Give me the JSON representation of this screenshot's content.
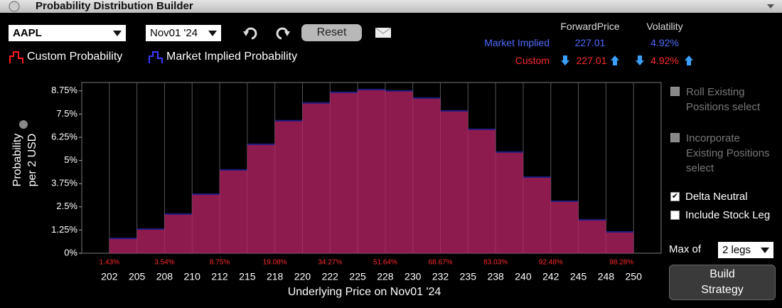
{
  "window": {
    "title": "Probability Distribution Builder"
  },
  "toolbar": {
    "symbol": "AAPL",
    "expiry": "Nov01 '24",
    "reset": "Reset"
  },
  "pricing": {
    "headers": [
      "ForwardPrice",
      "Volatility"
    ],
    "rows": [
      {
        "label": "Market Implied",
        "forward": 227.01,
        "volatility": "4.92%"
      },
      {
        "label": "Custom",
        "forward": 227.01,
        "volatility": "4.92%"
      }
    ]
  },
  "options": {
    "roll": "Roll Existing Positions select",
    "incorporate": "Incorporate Existing Positions select",
    "delta": "Delta Neutral",
    "delta_checked": true,
    "stock": "Include Stock Leg",
    "stock_checked": false,
    "max_label": "Max of",
    "max_value": "2 legs",
    "build": "Build Strategy"
  },
  "chart_data": {
    "type": "histogram",
    "ylabel": [
      "Probability",
      "per 2 USD"
    ],
    "xlabel": "Underlying Price on Nov01 '24",
    "bins": [
      202.5,
      205,
      207.5,
      210,
      212.5,
      215,
      217.5,
      220,
      222.5,
      225,
      227.5,
      230,
      232.5,
      235,
      237.5,
      240,
      242.5,
      245,
      247.5,
      250
    ],
    "series": [
      {
        "name": "Custom Probability",
        "color": "#ff1a1a",
        "values": [
          0.84,
          1.34,
          2.15,
          3.22,
          4.53,
          5.91,
          7.18,
          8.14,
          8.71,
          8.86,
          8.79,
          8.4,
          7.71,
          6.72,
          5.49,
          4.14,
          2.84,
          1.84,
          1.19
        ]
      },
      {
        "name": "Market Implied Probability",
        "color": "#3a3aff",
        "values": [
          0.84,
          1.34,
          2.15,
          3.22,
          4.53,
          5.91,
          7.18,
          8.14,
          8.71,
          8.86,
          8.79,
          8.4,
          7.71,
          6.72,
          5.49,
          4.14,
          2.84,
          1.84,
          1.19
        ]
      }
    ],
    "xlim": [
      200,
      252.5
    ],
    "xticks": [
      {
        "value": 202.5,
        "label": "202"
      },
      205,
      {
        "value": 207.5,
        "label": "208"
      },
      210,
      {
        "value": 212.5,
        "label": "212"
      },
      215,
      {
        "value": 217.5,
        "label": "218"
      },
      220,
      {
        "value": 222.5,
        "label": "222"
      },
      225,
      {
        "value": 227.5,
        "label": "228"
      },
      230,
      {
        "value": 232.5,
        "label": "232"
      },
      235,
      {
        "value": 237.5,
        "label": "238"
      },
      240,
      {
        "value": 242.5,
        "label": "242"
      },
      245,
      {
        "value": 247.5,
        "label": "248"
      },
      250
    ],
    "ylim": [
      0,
      9.2
    ],
    "yticks": [
      {
        "value": 0,
        "label": "0%"
      },
      {
        "value": 1.25,
        "label": "1.25%"
      },
      {
        "value": 2.5,
        "label": "2.5%"
      },
      {
        "value": 3.75,
        "label": "3.75%"
      },
      {
        "value": 5,
        "label": "5%"
      },
      {
        "value": 6.25,
        "label": "6.25%"
      },
      {
        "value": 7.5,
        "label": "7.5%"
      },
      {
        "value": 8.75,
        "label": "8.75%"
      }
    ],
    "grid": "x",
    "annotations": [
      {
        "x": 202.5,
        "text": "1.43%"
      },
      {
        "x": 207.5,
        "text": "3.54%"
      },
      {
        "x": 212.5,
        "text": "8.75%"
      },
      {
        "x": 217.5,
        "text": "19.08%"
      },
      {
        "x": 222.5,
        "text": "34.27%"
      },
      {
        "x": 227.5,
        "text": "51.64%"
      },
      {
        "x": 232.5,
        "text": "68.67%"
      },
      {
        "x": 237.5,
        "text": "83.03%"
      },
      {
        "x": 242.5,
        "text": "92.48%"
      },
      {
        "x": 250,
        "text": "98.28%"
      }
    ]
  }
}
